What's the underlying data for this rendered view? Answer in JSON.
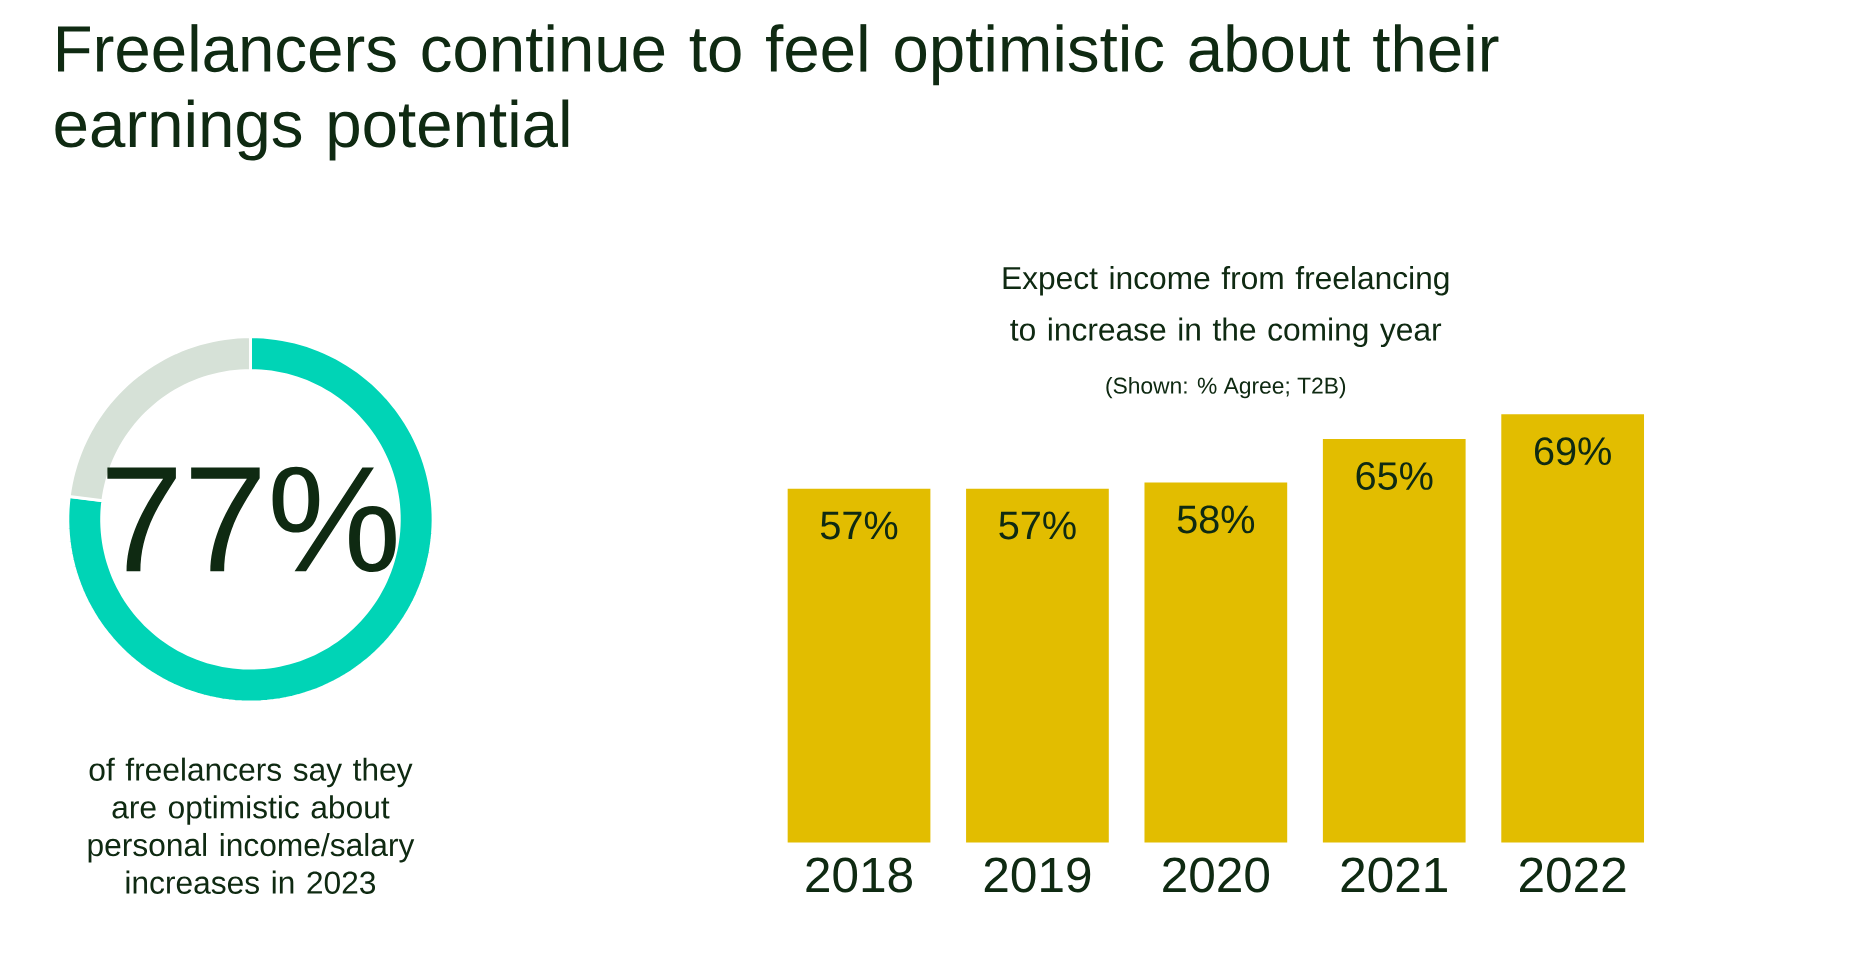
{
  "chart_data": [
    {
      "type": "donut",
      "title": "Freelancers continue to feel optimistic about their earnings potential",
      "categories": [
        null,
        null
      ],
      "values": [
        77,
        23
      ],
      "colors": [
        "#00d4b6",
        "#d6e1d7"
      ],
      "value_labels": [
        "77%",
        null
      ],
      "annotations": [
        "of freelancers say they are optimistic about personal income/salary increases in 2023"
      ]
    },
    {
      "type": "bar",
      "title": "Expect income from freelancing to increase in the coming year",
      "subtitle": "(Shown: % Agree; T2B)",
      "categories": [
        "2018",
        "2019",
        "2020",
        "2021",
        "2022"
      ],
      "values": [
        57,
        57,
        58,
        65,
        69
      ],
      "color": "#e2bd00",
      "value_labels": [
        "57%",
        "57%",
        "58%",
        "65%",
        "69%"
      ]
    }
  ]
}
